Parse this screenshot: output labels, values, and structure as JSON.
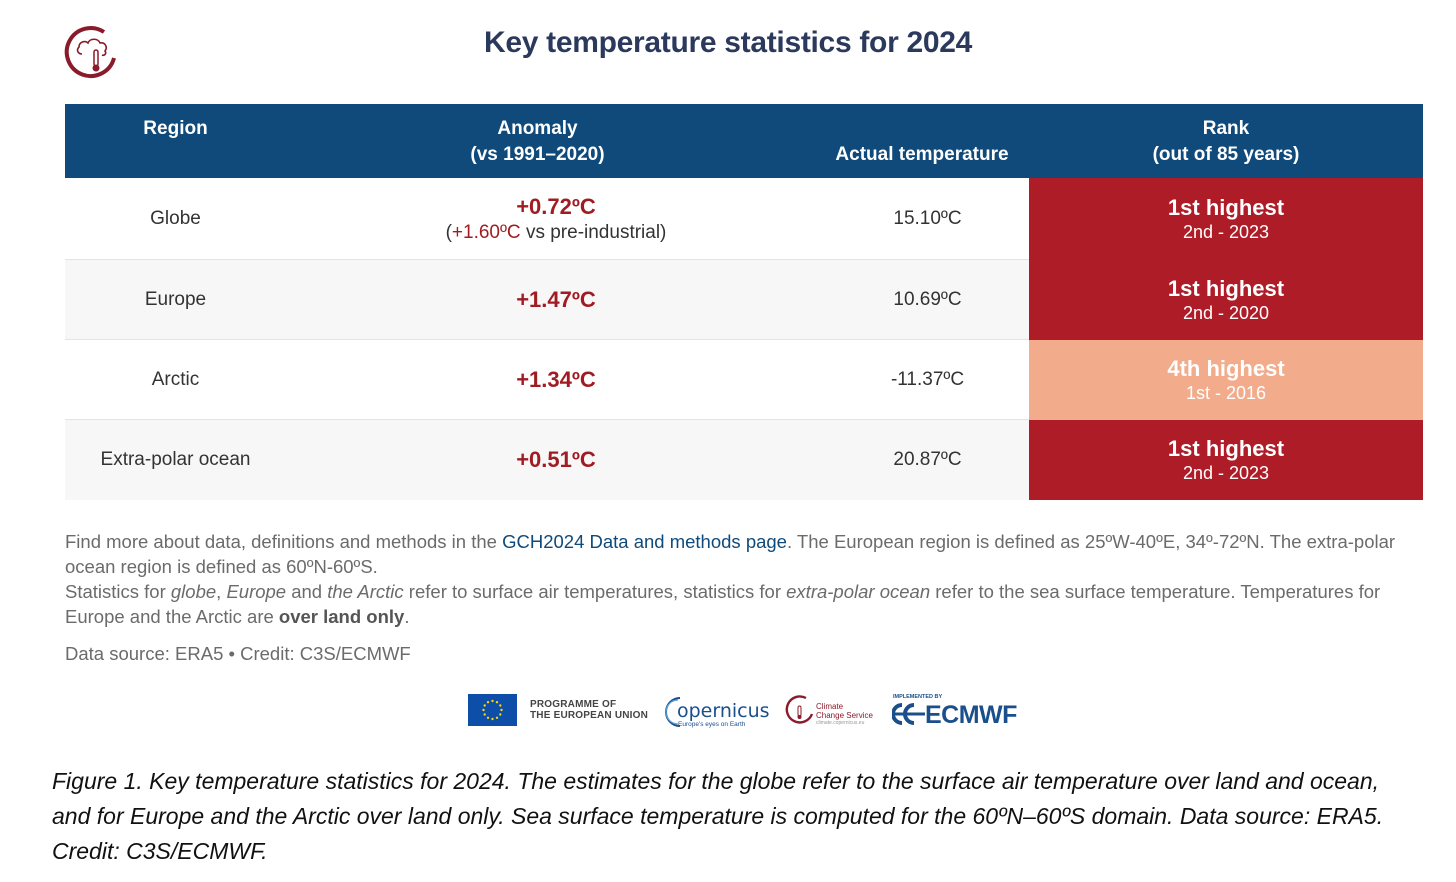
{
  "header": {
    "title": "Key temperature statistics for 2024"
  },
  "table": {
    "columns": {
      "region": "Region",
      "anomaly_line1": "Anomaly",
      "anomaly_line2": "(vs 1991–2020)",
      "actual": "Actual temperature",
      "rank_line1": "Rank",
      "rank_line2": "(out of 85 years)"
    },
    "rows": [
      {
        "region": "Globe",
        "anomaly": "+0.72ºC",
        "anomaly_note_open": "(",
        "anomaly_note_red": "+1.60ºC",
        "anomaly_note_rest": " vs pre-industrial)",
        "actual": "15.10ºC",
        "rank": "1st highest",
        "rank_sub": "2nd - 2023",
        "rank_color": "#ae1c28"
      },
      {
        "region": "Europe",
        "anomaly": "+1.47ºC",
        "actual": "10.69ºC",
        "rank": "1st highest",
        "rank_sub": "2nd - 2020",
        "rank_color": "#ae1c28"
      },
      {
        "region": "Arctic",
        "anomaly": "+1.34ºC",
        "actual": "-11.37ºC",
        "rank": "4th highest",
        "rank_sub": "1st - 2016",
        "rank_color": "#f2ab8b"
      },
      {
        "region": "Extra-polar ocean",
        "anomaly": "+0.51ºC",
        "actual": "20.87ºC",
        "rank": "1st highest",
        "rank_sub": "2nd - 2023",
        "rank_color": "#ae1c28"
      }
    ]
  },
  "notes": {
    "p1_before": "Find more about data, definitions and methods in the ",
    "p1_link": "GCH2024 Data and methods page",
    "p1_after": ". The European region is defined as 25ºW-40ºE, 34º-72ºN. The extra-polar ocean region is defined as 60ºN-60ºS.",
    "p2_a": "Statistics for ",
    "p2_globe": "globe",
    "p2_b": ", ",
    "p2_europe": "Europe",
    "p2_c": " and ",
    "p2_arctic": "the Arctic",
    "p2_d": " refer to surface air temperatures, statistics for ",
    "p2_ocean": "extra-polar ocean",
    "p2_e": " refer to the sea surface temperature. Temperatures for Europe and the Arctic are ",
    "p2_bold": "over land only",
    "p2_f": "."
  },
  "source": "Data source: ERA5 • Credit: C3S/ECMWF",
  "partners": {
    "eu_line1": "PROGRAMME OF",
    "eu_line2": "THE EUROPEAN UNION",
    "copernicus": "opernicus",
    "copernicus_tag": "Europe's eyes on Earth",
    "c3s_line1": "Climate",
    "c3s_line2": "Change Service",
    "c3s_url": "climate.copernicus.eu",
    "ecmwf_impl": "IMPLEMENTED BY",
    "ecmwf": "ECMWF"
  },
  "caption": "Figure 1. Key temperature statistics for 2024. The estimates for the globe refer to the surface air temperature over land and ocean, and for Europe and the Arctic over land only. Sea surface temperature is computed for the 60ºN–60ºS domain. Data source: ERA5. Credit: C3S/ECMWF.",
  "colors": {
    "header_bg": "#0f4a7b",
    "title": "#2b3a5c",
    "anomaly": "#a01c22",
    "rank_high": "#ae1c28",
    "rank_mid": "#f2ab8b"
  }
}
